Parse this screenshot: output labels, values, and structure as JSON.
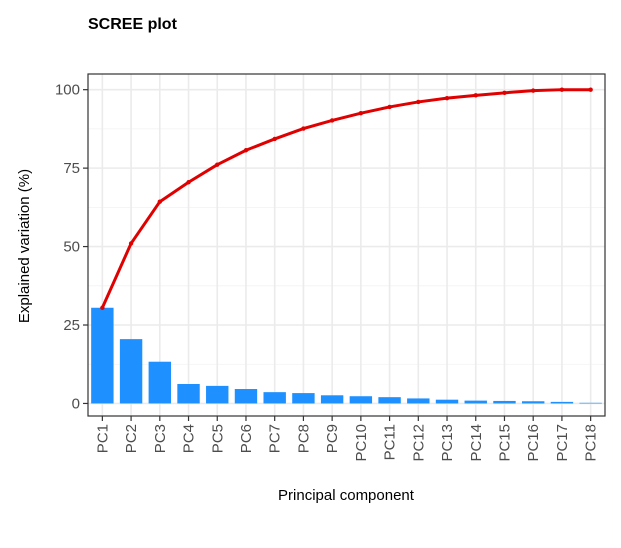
{
  "chart_data": {
    "type": "bar",
    "title": "SCREE plot",
    "xlabel": "Principal component",
    "ylabel": "Explained variation (%)",
    "categories": [
      "PC1",
      "PC2",
      "PC3",
      "PC4",
      "PC5",
      "PC6",
      "PC7",
      "PC8",
      "PC9",
      "PC10",
      "PC11",
      "PC12",
      "PC13",
      "PC14",
      "PC15",
      "PC16",
      "PC17",
      "PC18"
    ],
    "series": [
      {
        "type": "bar",
        "values": [
          30.5,
          20.5,
          13.3,
          6.2,
          5.6,
          4.6,
          3.6,
          3.3,
          2.6,
          2.3,
          2.0,
          1.6,
          1.2,
          0.9,
          0.8,
          0.7,
          0.5,
          0.2
        ],
        "color": "#1e90ff"
      },
      {
        "type": "line",
        "values": [
          30.5,
          51.0,
          64.3,
          70.5,
          76.1,
          80.7,
          84.3,
          87.6,
          90.2,
          92.5,
          94.5,
          96.1,
          97.3,
          98.2,
          99.0,
          99.7,
          100.0,
          100.0
        ],
        "color": "#e00000"
      }
    ],
    "ylim": [
      -4,
      105
    ],
    "yticks": [
      0,
      25,
      50,
      75,
      100
    ],
    "grid": true,
    "legend": "none"
  }
}
